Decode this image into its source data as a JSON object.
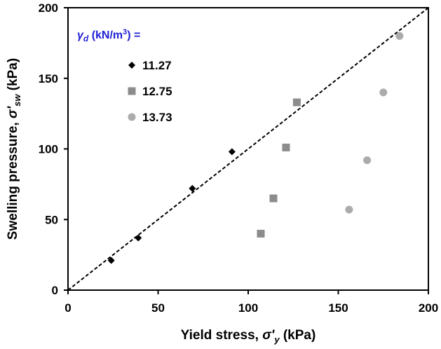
{
  "chart_data": {
    "type": "scatter",
    "xlabel": {
      "prefix": "Yield stress, ",
      "sym": "σ'",
      "sub": "y",
      "suffix": " (kPa)"
    },
    "ylabel": {
      "prefix": "Swelling pressure, ",
      "sym": "σ'",
      "sub": "sw",
      "suffix": " (kPa)"
    },
    "xlim": [
      0,
      200
    ],
    "ylim": [
      0,
      200
    ],
    "xticks": [
      0,
      50,
      100,
      150,
      200
    ],
    "yticks": [
      0,
      50,
      100,
      150,
      200
    ],
    "grid": false,
    "legend": {
      "placement": "top-left",
      "title": {
        "sym": "γ",
        "sub": "d",
        "unit": " (kN/m",
        "sup": "3",
        "tail": ") ="
      }
    },
    "reference_line": {
      "style": "dashed",
      "from": [
        0,
        0
      ],
      "to": [
        200,
        200
      ]
    },
    "series": [
      {
        "name": "11.27",
        "marker": "diamond",
        "color": "#000000",
        "x": [
          24,
          39,
          69,
          91
        ],
        "y": [
          21,
          37,
          72,
          98
        ]
      },
      {
        "name": "12.75",
        "marker": "square",
        "color": "#8c8c8c",
        "x": [
          107,
          114,
          121,
          127
        ],
        "y": [
          40,
          65,
          101,
          133
        ]
      },
      {
        "name": "13.73",
        "marker": "circle",
        "color": "#ababab",
        "x": [
          156,
          166,
          175,
          184
        ],
        "y": [
          57,
          92,
          140,
          180
        ]
      }
    ]
  }
}
